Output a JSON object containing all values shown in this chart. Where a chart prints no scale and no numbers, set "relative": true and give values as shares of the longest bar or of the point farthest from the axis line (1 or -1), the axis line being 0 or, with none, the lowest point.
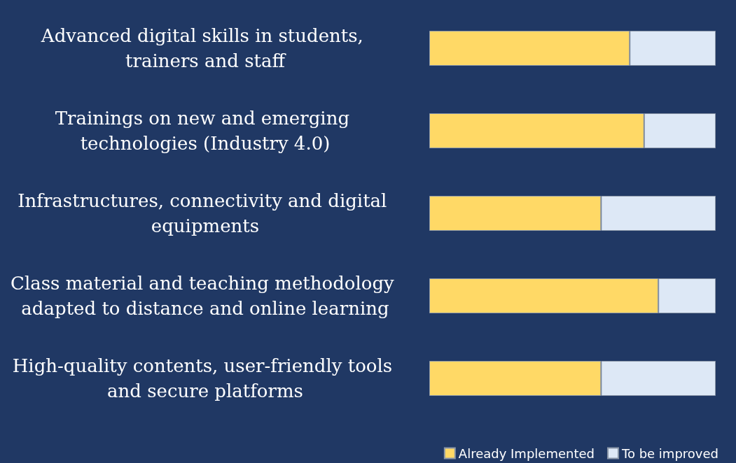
{
  "chart_data": {
    "type": "bar",
    "orientation": "horizontal",
    "stacked": true,
    "relative": true,
    "legend": "bottom right",
    "categories": [
      "Advanced digital skills in students, trainers and staff",
      "Trainings on new and emerging technologies (Industry 4.0)",
      "Infrastructures, connectivity and digital equipments",
      "Class material and teaching methodology adapted to distance and online learning",
      "High-quality contents, user-friendly tools and secure platforms"
    ],
    "series": [
      {
        "name": "Already Implemented",
        "color": "#ffd966",
        "values": [
          0.7,
          0.75,
          0.6,
          0.8,
          0.6
        ]
      },
      {
        "name": "To be improved",
        "color": "#dde8f6",
        "values": [
          0.3,
          0.25,
          0.4,
          0.2,
          0.4
        ]
      }
    ]
  }
}
